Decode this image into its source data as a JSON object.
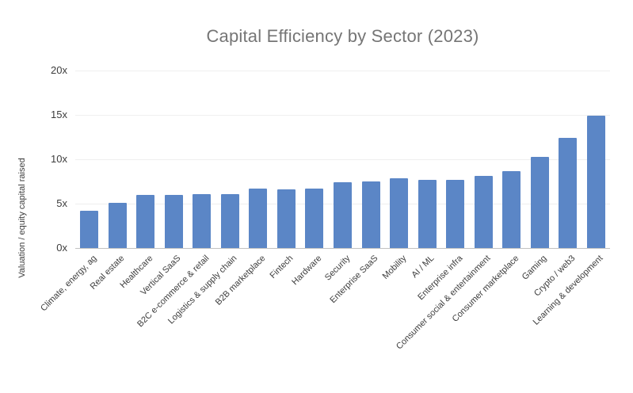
{
  "chart_data": {
    "type": "bar",
    "title": "Capital Efficiency by Sector (2023)",
    "xlabel": "",
    "ylabel": "Valuation / equity capital raised",
    "ylim": [
      0,
      20
    ],
    "grid": true,
    "legend_position": "none",
    "y_ticks": [
      {
        "value": 0,
        "label": "0x"
      },
      {
        "value": 5,
        "label": "5x"
      },
      {
        "value": 10,
        "label": "10x"
      },
      {
        "value": 15,
        "label": "15x"
      },
      {
        "value": 20,
        "label": "20x"
      }
    ],
    "categories": [
      "Climate, energy, ag",
      "Real estate",
      "Healthcare",
      "Vertical SaaS",
      "B2C e-commerce & retail",
      "Logistics & supply chain",
      "B2B marketplace",
      "Fintech",
      "Hardware",
      "Security",
      "Enterprise SaaS",
      "Mobility",
      "AI / ML",
      "Enterprise infra",
      "Consumer social & entertainment",
      "Consumer marketplace",
      "Gaming",
      "Crypto / web3",
      "Learning & development"
    ],
    "values": [
      4.2,
      5.1,
      6.0,
      6.0,
      6.1,
      6.1,
      6.7,
      6.6,
      6.7,
      7.4,
      7.5,
      7.9,
      7.7,
      7.7,
      8.1,
      8.7,
      10.3,
      12.4,
      14.9
    ]
  },
  "colors": {
    "background": "#ffffff",
    "bar": "#5b86c6",
    "title_text": "#757575",
    "axis_text": "#3d3d3d",
    "gridline": "#efefef",
    "baseline": "#c2c2c2"
  }
}
